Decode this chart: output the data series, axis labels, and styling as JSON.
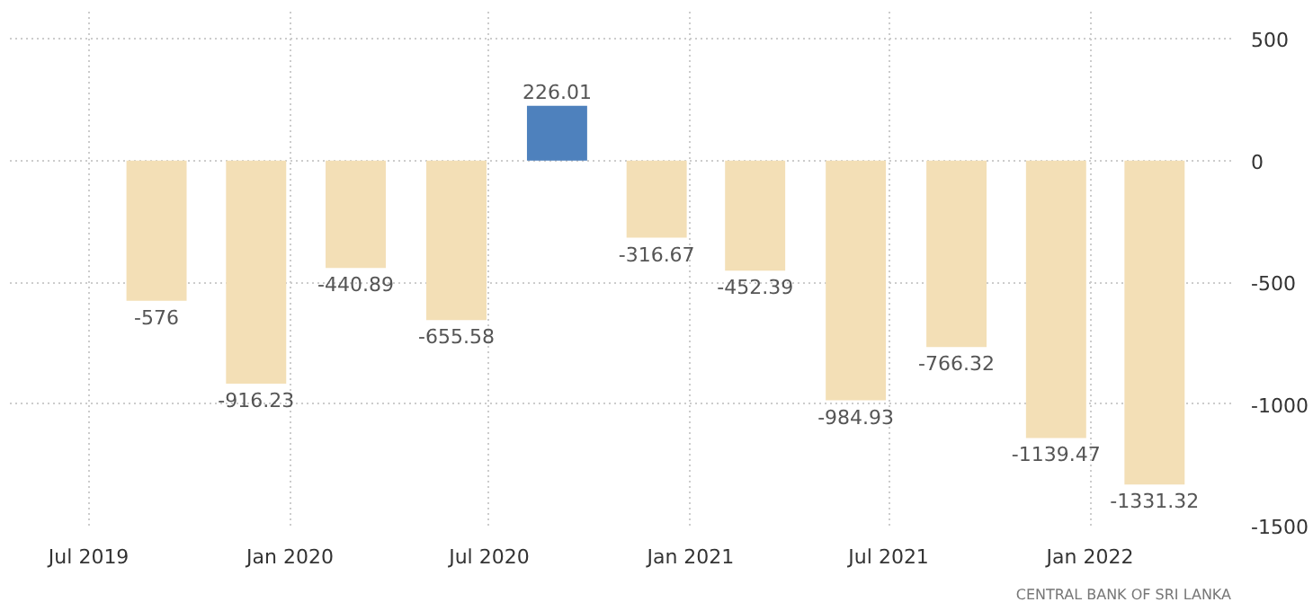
{
  "chart_data": {
    "type": "bar",
    "x": [
      "2019-09",
      "2019-12",
      "2020-03",
      "2020-06",
      "2020-09",
      "2020-12",
      "2021-03",
      "2021-06",
      "2021-09",
      "2021-12",
      "2022-03"
    ],
    "values": [
      -576,
      -916.23,
      -440.89,
      -655.58,
      226.01,
      -316.67,
      -452.39,
      -984.93,
      -766.32,
      -1139.47,
      -1331.32
    ],
    "colors": [
      "#f3dfb6",
      "#f3dfb6",
      "#f3dfb6",
      "#f3dfb6",
      "#4e81bd",
      "#f3dfb6",
      "#f3dfb6",
      "#f3dfb6",
      "#f3dfb6",
      "#f3dfb6",
      "#f3dfb6"
    ],
    "data_labels": true,
    "xlim": [
      "2019-04-20",
      "2022-05-10"
    ],
    "xticks": [
      {
        "value": "2019-07",
        "label": "Jul 2019"
      },
      {
        "value": "2020-01",
        "label": "Jan 2020"
      },
      {
        "value": "2020-07",
        "label": "Jul 2020"
      },
      {
        "value": "2021-01",
        "label": "Jan 2021"
      },
      {
        "value": "2021-07",
        "label": "Jul 2021"
      },
      {
        "value": "2022-01",
        "label": "Jan 2022"
      }
    ],
    "ylim": [
      -1500,
      620
    ],
    "yticks": [
      500,
      0,
      -500,
      -1000,
      -1500
    ],
    "grid": true,
    "annotations": [
      "CENTRAL BANK OF SRI LANKA"
    ]
  }
}
